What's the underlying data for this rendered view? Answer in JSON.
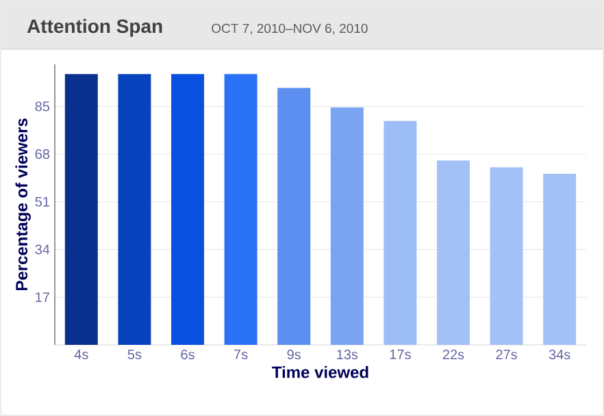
{
  "chart_data": {
    "type": "bar",
    "title": "Attention Span",
    "subtitle": "OCT 7, 2010–NOV 6, 2010",
    "xlabel": "Time viewed",
    "ylabel": "Percentage of viewers",
    "categories": [
      "4s",
      "5s",
      "6s",
      "7s",
      "9s",
      "13s",
      "17s",
      "22s",
      "27s",
      "34s"
    ],
    "values": [
      96.5,
      96.5,
      96.5,
      96.5,
      91.6,
      84.6,
      79.8,
      65.7,
      63.3,
      61
    ],
    "colors": [
      "#0b318f",
      "#0843be",
      "#0a50e0",
      "#2a72f5",
      "#5c8ff0",
      "#7aa3f2",
      "#9dbdf7",
      "#a4c1f7",
      "#a4c1f7",
      "#a4c1f7"
    ],
    "ylim": [
      0,
      100
    ],
    "yticks": [
      17,
      34,
      51,
      68,
      85
    ],
    "grid": "y"
  }
}
